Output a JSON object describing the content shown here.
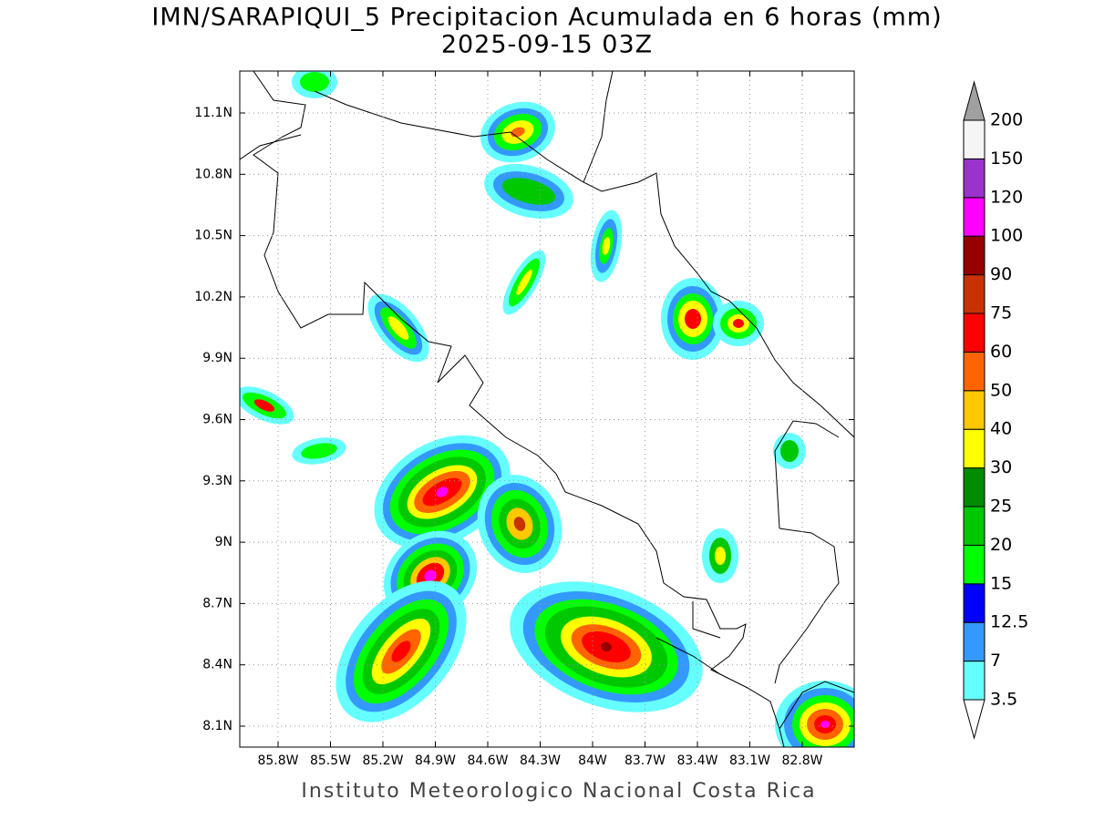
{
  "title": "IMN/SARAPIQUI_5 Precipitacion Acumulada en 6 horas (mm)",
  "subtitle": "2025-09-15 03Z",
  "footer": "Instituto Meteorologico Nacional Costa Rica",
  "map": {
    "lon_ticks": [
      "85.8W",
      "85.5W",
      "85.2W",
      "84.9W",
      "84.6W",
      "84.3W",
      "84W",
      "83.7W",
      "83.4W",
      "83.1W",
      "82.8W"
    ],
    "lat_ticks": [
      "11.1N",
      "10.8N",
      "10.5N",
      "10.2N",
      "9.9N",
      "9.6N",
      "9.3N",
      "9N",
      "8.7N",
      "8.4N",
      "8.1N"
    ],
    "grid": true
  },
  "colorbar": {
    "levels": [
      3.5,
      7,
      12.5,
      15,
      20,
      25,
      30,
      40,
      50,
      60,
      75,
      90,
      100,
      120,
      150,
      200
    ],
    "colors": [
      "#66ffff",
      "#3399ff",
      "#0000ff",
      "#00ff00",
      "#00c800",
      "#008c00",
      "#ffff00",
      "#ffc800",
      "#ff6400",
      "#ff0000",
      "#c83200",
      "#960000",
      "#ff00ff",
      "#9933cc",
      "#f5f5f5"
    ],
    "under_color": "#ffffff",
    "over_color": "#a0a0a0"
  }
}
